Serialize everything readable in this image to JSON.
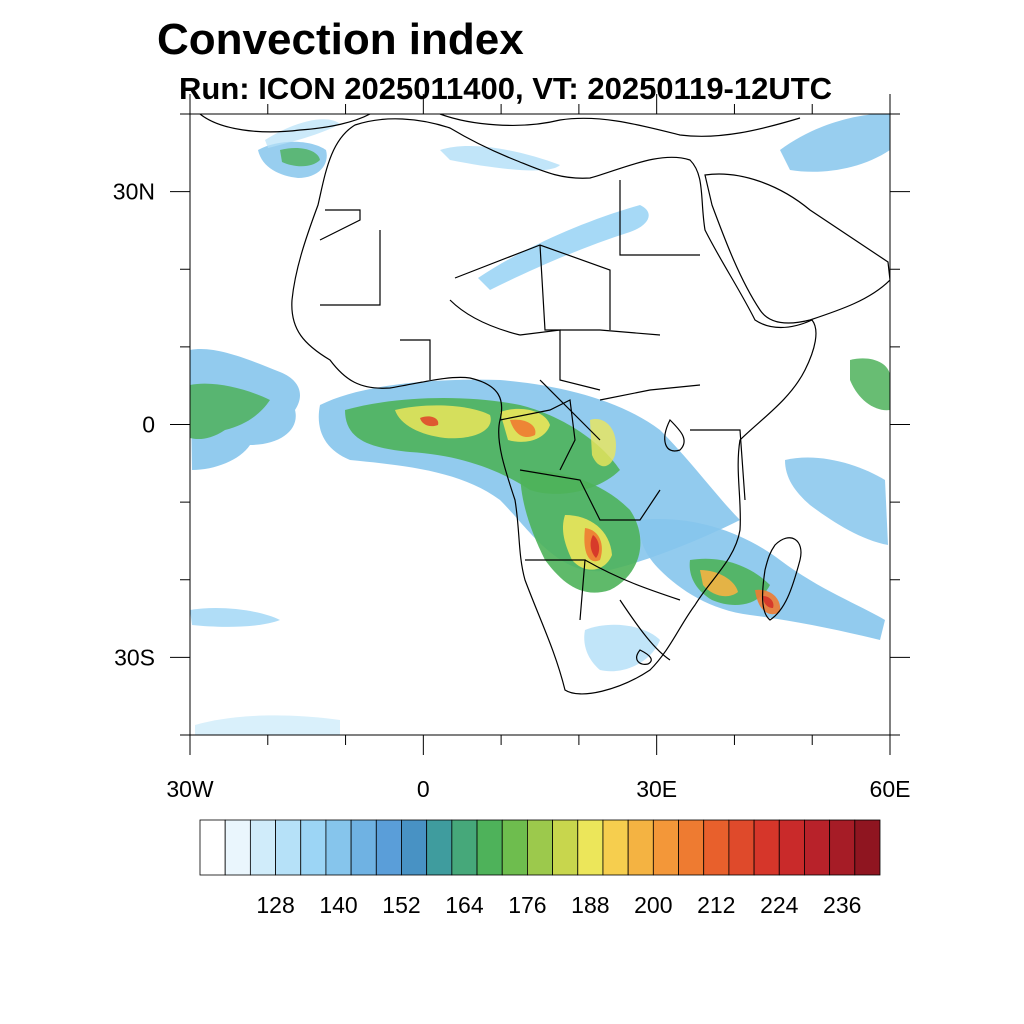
{
  "header": {
    "title": "Convection index",
    "subtitle": "Run: ICON 2025011400,  VT: 20250119-12UTC"
  },
  "map": {
    "lat_ticks": [
      {
        "label": "30N",
        "lat": 30
      },
      {
        "label": "0",
        "lat": 0
      },
      {
        "label": "30S",
        "lat": -30
      }
    ],
    "lon_ticks": [
      {
        "label": "30W",
        "lon": -30
      },
      {
        "label": "0",
        "lon": 0
      },
      {
        "label": "30E",
        "lon": 30
      },
      {
        "label": "60E",
        "lon": 60
      }
    ]
  },
  "colorbar": {
    "colors": [
      "#ffffff",
      "#eaf6fd",
      "#d0ecfa",
      "#b6e1f8",
      "#9cd5f5",
      "#86c5ec",
      "#6fb2e3",
      "#5a9ed9",
      "#4892c4",
      "#3f9c9e",
      "#46a87a",
      "#4eb25a",
      "#6ebd4e",
      "#9cc94c",
      "#c8d64d",
      "#ece65a",
      "#f6ce4e",
      "#f4b342",
      "#f39739",
      "#ee7b31",
      "#e8602c",
      "#df4a2b",
      "#d6362a",
      "#c92a2a",
      "#b8222a",
      "#a61c26",
      "#8f1520"
    ],
    "labels": [
      "128",
      "140",
      "152",
      "164",
      "176",
      "188",
      "200",
      "212",
      "224",
      "236"
    ]
  }
}
